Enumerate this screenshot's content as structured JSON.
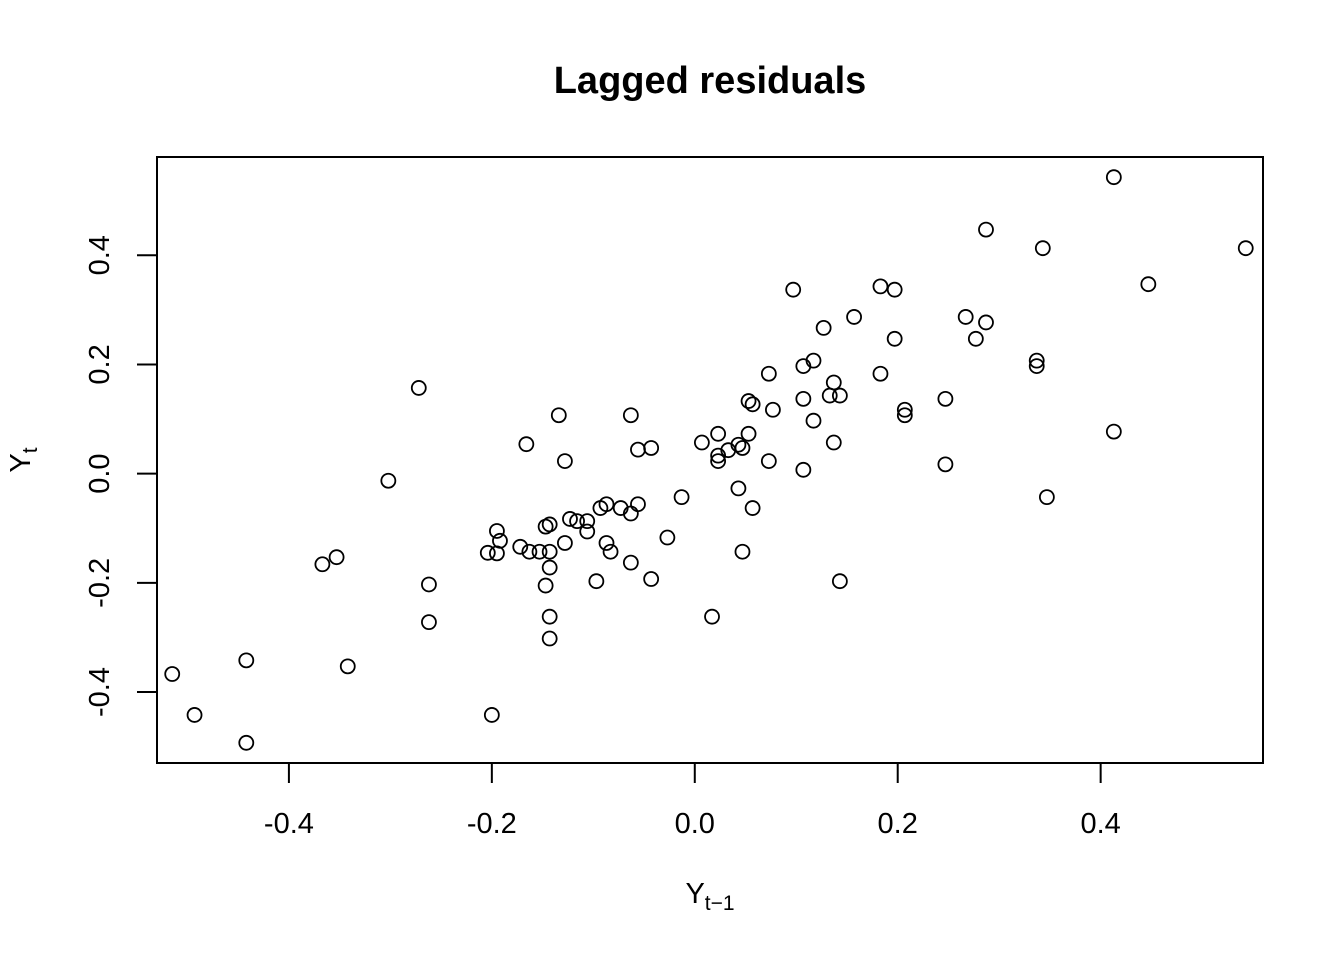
{
  "chart_data": {
    "type": "scatter",
    "title": "Lagged residuals",
    "xlabel": {
      "main": "Y",
      "sub": "t−1"
    },
    "ylabel": {
      "main": "Y",
      "sub": "t"
    },
    "xlim": [
      -0.53,
      0.56
    ],
    "ylim": [
      -0.53,
      0.58
    ],
    "xticks": [
      -0.4,
      -0.2,
      0.0,
      0.2,
      0.4
    ],
    "xtick_labels": [
      "-0.4",
      "-0.2",
      "0.0",
      "0.2",
      "0.4"
    ],
    "yticks": [
      -0.4,
      -0.2,
      0.0,
      0.2,
      0.4
    ],
    "ytick_labels": [
      "-0.4",
      "-0.2",
      "0.0",
      "0.2",
      "0.4"
    ],
    "grid": false,
    "legend": null,
    "marker": "open-circle",
    "points": [
      [
        -0.515,
        -0.367
      ],
      [
        -0.493,
        -0.442
      ],
      [
        -0.442,
        -0.342
      ],
      [
        -0.442,
        -0.493
      ],
      [
        -0.367,
        -0.166
      ],
      [
        -0.353,
        -0.153
      ],
      [
        -0.342,
        -0.353
      ],
      [
        -0.302,
        -0.013
      ],
      [
        -0.272,
        0.157
      ],
      [
        -0.262,
        -0.203
      ],
      [
        -0.262,
        -0.272
      ],
      [
        -0.204,
        -0.145
      ],
      [
        -0.2,
        -0.442
      ],
      [
        -0.195,
        -0.105
      ],
      [
        -0.195,
        -0.146
      ],
      [
        -0.192,
        -0.123
      ],
      [
        -0.172,
        -0.134
      ],
      [
        -0.166,
        0.054
      ],
      [
        -0.163,
        -0.143
      ],
      [
        -0.153,
        -0.143
      ],
      [
        -0.147,
        -0.097
      ],
      [
        -0.147,
        -0.205
      ],
      [
        -0.143,
        -0.093
      ],
      [
        -0.143,
        -0.143
      ],
      [
        -0.143,
        -0.172
      ],
      [
        -0.143,
        -0.262
      ],
      [
        -0.143,
        -0.302
      ],
      [
        -0.134,
        0.107
      ],
      [
        -0.128,
        0.023
      ],
      [
        -0.128,
        -0.127
      ],
      [
        -0.123,
        -0.083
      ],
      [
        -0.116,
        -0.087
      ],
      [
        -0.106,
        -0.087
      ],
      [
        -0.106,
        -0.106
      ],
      [
        -0.097,
        -0.197
      ],
      [
        -0.093,
        -0.063
      ],
      [
        -0.087,
        -0.056
      ],
      [
        -0.087,
        -0.127
      ],
      [
        -0.083,
        -0.143
      ],
      [
        -0.073,
        -0.063
      ],
      [
        -0.063,
        0.107
      ],
      [
        -0.063,
        -0.073
      ],
      [
        -0.063,
        -0.163
      ],
      [
        -0.056,
        0.044
      ],
      [
        -0.056,
        -0.056
      ],
      [
        -0.043,
        0.047
      ],
      [
        -0.043,
        -0.193
      ],
      [
        -0.027,
        -0.117
      ],
      [
        -0.013,
        -0.043
      ],
      [
        0.007,
        0.057
      ],
      [
        0.017,
        -0.262
      ],
      [
        0.023,
        0.073
      ],
      [
        0.023,
        0.033
      ],
      [
        0.023,
        0.023
      ],
      [
        0.033,
        0.043
      ],
      [
        0.043,
        0.053
      ],
      [
        0.043,
        -0.027
      ],
      [
        0.047,
        0.047
      ],
      [
        0.047,
        -0.143
      ],
      [
        0.053,
        0.133
      ],
      [
        0.053,
        0.073
      ],
      [
        0.057,
        0.127
      ],
      [
        0.057,
        -0.063
      ],
      [
        0.073,
        0.183
      ],
      [
        0.073,
        0.023
      ],
      [
        0.077,
        0.117
      ],
      [
        0.097,
        0.337
      ],
      [
        0.107,
        0.197
      ],
      [
        0.107,
        0.137
      ],
      [
        0.107,
        0.007
      ],
      [
        0.117,
        0.207
      ],
      [
        0.117,
        0.097
      ],
      [
        0.127,
        0.267
      ],
      [
        0.133,
        0.143
      ],
      [
        0.137,
        0.167
      ],
      [
        0.137,
        0.057
      ],
      [
        0.143,
        0.143
      ],
      [
        0.143,
        -0.197
      ],
      [
        0.157,
        0.287
      ],
      [
        0.183,
        0.343
      ],
      [
        0.183,
        0.183
      ],
      [
        0.197,
        0.337
      ],
      [
        0.197,
        0.247
      ],
      [
        0.207,
        0.117
      ],
      [
        0.207,
        0.107
      ],
      [
        0.247,
        0.137
      ],
      [
        0.247,
        0.017
      ],
      [
        0.267,
        0.287
      ],
      [
        0.277,
        0.247
      ],
      [
        0.287,
        0.447
      ],
      [
        0.287,
        0.277
      ],
      [
        0.337,
        0.207
      ],
      [
        0.337,
        0.197
      ],
      [
        0.343,
        0.413
      ],
      [
        0.347,
        -0.043
      ],
      [
        0.413,
        0.543
      ],
      [
        0.413,
        0.077
      ],
      [
        0.447,
        0.347
      ],
      [
        0.543,
        0.413
      ]
    ]
  }
}
